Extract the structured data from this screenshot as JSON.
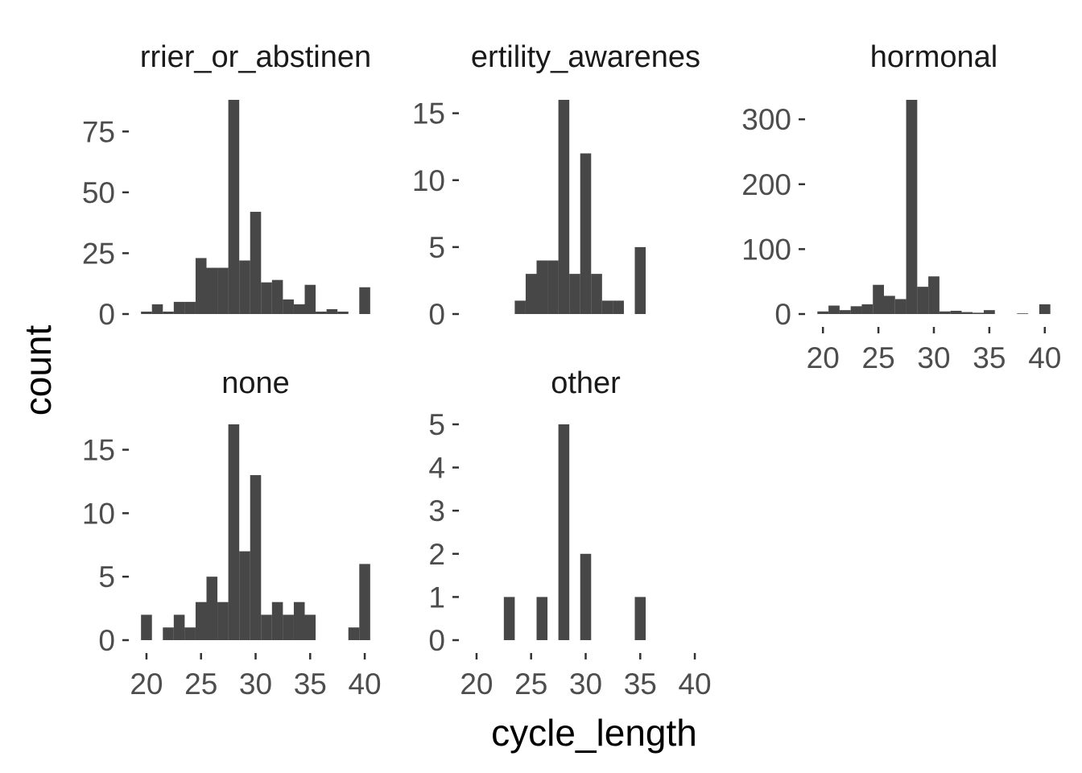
{
  "chart_data": {
    "type": "bar",
    "subtype": "histogram-facets",
    "xlabel": "cycle_length",
    "ylabel": "count",
    "bar_color": "#474747",
    "background": "#ffffff",
    "grid": false,
    "bin_width": 1,
    "x_ticks": [
      20,
      25,
      30,
      35,
      40
    ],
    "panels": [
      {
        "strip_label": "barrier_or_abstinence",
        "strip_label_visible": "rrier_or_abstinen",
        "y_ticks": [
          0,
          25,
          50,
          75
        ],
        "ylim": [
          0,
          88
        ],
        "show_x_axis": false,
        "bins": [
          {
            "x": 20,
            "count": 1
          },
          {
            "x": 21,
            "count": 4
          },
          {
            "x": 22,
            "count": 1
          },
          {
            "x": 23,
            "count": 5
          },
          {
            "x": 24,
            "count": 5
          },
          {
            "x": 25,
            "count": 23
          },
          {
            "x": 26,
            "count": 19
          },
          {
            "x": 27,
            "count": 19
          },
          {
            "x": 28,
            "count": 88
          },
          {
            "x": 29,
            "count": 22
          },
          {
            "x": 30,
            "count": 42
          },
          {
            "x": 31,
            "count": 13
          },
          {
            "x": 32,
            "count": 14
          },
          {
            "x": 33,
            "count": 6
          },
          {
            "x": 34,
            "count": 4
          },
          {
            "x": 35,
            "count": 12
          },
          {
            "x": 36,
            "count": 1
          },
          {
            "x": 37,
            "count": 2
          },
          {
            "x": 38,
            "count": 1
          },
          {
            "x": 40,
            "count": 11
          }
        ]
      },
      {
        "strip_label": "fertility_awareness",
        "strip_label_visible": "ertility_awarenes",
        "y_ticks": [
          0,
          5,
          10,
          15
        ],
        "ylim": [
          0,
          16
        ],
        "show_x_axis": false,
        "bins": [
          {
            "x": 24,
            "count": 1
          },
          {
            "x": 25,
            "count": 3
          },
          {
            "x": 26,
            "count": 4
          },
          {
            "x": 27,
            "count": 4
          },
          {
            "x": 28,
            "count": 16
          },
          {
            "x": 29,
            "count": 3
          },
          {
            "x": 30,
            "count": 12
          },
          {
            "x": 31,
            "count": 3
          },
          {
            "x": 32,
            "count": 1
          },
          {
            "x": 33,
            "count": 1
          },
          {
            "x": 35,
            "count": 5
          }
        ]
      },
      {
        "strip_label": "hormonal",
        "strip_label_visible": "hormonal",
        "y_ticks": [
          0,
          100,
          200,
          300
        ],
        "ylim": [
          0,
          330
        ],
        "show_x_axis": true,
        "bins": [
          {
            "x": 20,
            "count": 4
          },
          {
            "x": 21,
            "count": 13
          },
          {
            "x": 22,
            "count": 6
          },
          {
            "x": 23,
            "count": 12
          },
          {
            "x": 24,
            "count": 15
          },
          {
            "x": 25,
            "count": 45
          },
          {
            "x": 26,
            "count": 28
          },
          {
            "x": 27,
            "count": 23
          },
          {
            "x": 28,
            "count": 330
          },
          {
            "x": 29,
            "count": 42
          },
          {
            "x": 30,
            "count": 58
          },
          {
            "x": 31,
            "count": 4
          },
          {
            "x": 32,
            "count": 5
          },
          {
            "x": 33,
            "count": 3
          },
          {
            "x": 34,
            "count": 2
          },
          {
            "x": 35,
            "count": 6
          },
          {
            "x": 38,
            "count": 1
          },
          {
            "x": 40,
            "count": 15
          }
        ]
      },
      {
        "strip_label": "none",
        "strip_label_visible": "none",
        "y_ticks": [
          0,
          5,
          10,
          15
        ],
        "ylim": [
          0,
          17
        ],
        "show_x_axis": true,
        "bins": [
          {
            "x": 20,
            "count": 2
          },
          {
            "x": 22,
            "count": 1
          },
          {
            "x": 23,
            "count": 2
          },
          {
            "x": 24,
            "count": 1
          },
          {
            "x": 25,
            "count": 3
          },
          {
            "x": 26,
            "count": 5
          },
          {
            "x": 27,
            "count": 3
          },
          {
            "x": 28,
            "count": 17
          },
          {
            "x": 29,
            "count": 7
          },
          {
            "x": 30,
            "count": 13
          },
          {
            "x": 31,
            "count": 2
          },
          {
            "x": 32,
            "count": 3
          },
          {
            "x": 33,
            "count": 2
          },
          {
            "x": 34,
            "count": 3
          },
          {
            "x": 35,
            "count": 2
          },
          {
            "x": 39,
            "count": 1
          },
          {
            "x": 40,
            "count": 6
          }
        ]
      },
      {
        "strip_label": "other",
        "strip_label_visible": "other",
        "y_ticks": [
          0,
          1,
          2,
          3,
          4,
          5
        ],
        "ylim": [
          0,
          5
        ],
        "show_x_axis": true,
        "bins": [
          {
            "x": 23,
            "count": 1
          },
          {
            "x": 26,
            "count": 1
          },
          {
            "x": 28,
            "count": 5
          },
          {
            "x": 30,
            "count": 2
          },
          {
            "x": 35,
            "count": 1
          }
        ]
      }
    ]
  }
}
